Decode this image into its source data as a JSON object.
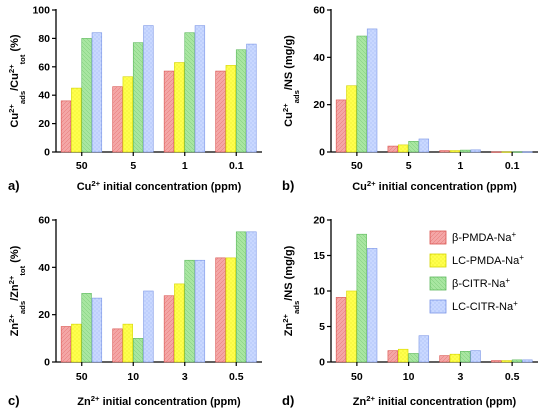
{
  "legend": {
    "placement": "right of panel d",
    "entries": [
      {
        "label": "β-PMDA-Na⁺",
        "color": "#f4a6a6",
        "stroke": "#d9534f",
        "pattern": "hatch"
      },
      {
        "label": "LC-PMDA-Na⁺",
        "color": "#ffff4d",
        "stroke": "#d4d400",
        "pattern": "dots"
      },
      {
        "label": "β-CITR-Na⁺",
        "color": "#a8e6a1",
        "stroke": "#5cb85c",
        "pattern": "diag"
      },
      {
        "label": "LC-CITR-Na⁺",
        "color": "#c9d8ff",
        "stroke": "#7a95e6",
        "pattern": "dots"
      }
    ]
  },
  "chart_data": [
    {
      "type": "bar",
      "panel_label": "a)",
      "categories": [
        "50",
        "5",
        "1",
        "0.1"
      ],
      "ylim": [
        0,
        100
      ],
      "yticks": [
        0,
        20,
        40,
        60,
        80,
        100
      ],
      "ylabel": "Cu²⁺ads/Cu²⁺tot (%)",
      "xlabel": "Cu²⁺ initial concentration (ppm)",
      "series": [
        {
          "values": [
            36,
            46,
            57,
            57
          ]
        },
        {
          "values": [
            45,
            53,
            63,
            61
          ]
        },
        {
          "values": [
            80,
            77,
            84,
            72
          ]
        },
        {
          "values": [
            84,
            89,
            89,
            76
          ]
        }
      ]
    },
    {
      "type": "bar",
      "panel_label": "b)",
      "categories": [
        "50",
        "5",
        "1",
        "0.1"
      ],
      "ylim": [
        0,
        60
      ],
      "yticks": [
        0,
        20,
        40,
        60
      ],
      "ylabel": "Cu²⁺ads/NS (mg/g)",
      "xlabel": "Cu²⁺ initial concentration (ppm)",
      "series": [
        {
          "values": [
            22,
            2.5,
            0.6,
            0.06
          ]
        },
        {
          "values": [
            28,
            3,
            0.6,
            0.06
          ]
        },
        {
          "values": [
            49,
            4.5,
            0.8,
            0.07
          ]
        },
        {
          "values": [
            52,
            5.5,
            0.9,
            0.08
          ]
        }
      ]
    },
    {
      "type": "bar",
      "panel_label": "c)",
      "categories": [
        "50",
        "10",
        "3",
        "0.5"
      ],
      "ylim": [
        0,
        60
      ],
      "yticks": [
        0,
        20,
        40,
        60
      ],
      "ylabel": "Zn²⁺ads/Zn²⁺tot (%)",
      "xlabel": "Zn²⁺ initial concentration (ppm)",
      "series": [
        {
          "values": [
            15,
            14,
            28,
            44
          ]
        },
        {
          "values": [
            16,
            16,
            33,
            44
          ]
        },
        {
          "values": [
            29,
            10,
            43,
            55
          ]
        },
        {
          "values": [
            27,
            30,
            43,
            55
          ]
        }
      ]
    },
    {
      "type": "bar",
      "panel_label": "d)",
      "categories": [
        "50",
        "10",
        "3",
        "0.5"
      ],
      "ylim": [
        0,
        20
      ],
      "yticks": [
        0,
        5,
        10,
        15,
        20
      ],
      "ylabel": "Zn²⁺ads/NS (mg/g)",
      "xlabel": "Zn²⁺ initial concentration (ppm)",
      "series": [
        {
          "values": [
            9.1,
            1.6,
            0.9,
            0.2
          ]
        },
        {
          "values": [
            10,
            1.8,
            1.1,
            0.2
          ]
        },
        {
          "values": [
            18,
            1.2,
            1.5,
            0.3
          ]
        },
        {
          "values": [
            16,
            3.7,
            1.6,
            0.3
          ]
        }
      ]
    }
  ]
}
